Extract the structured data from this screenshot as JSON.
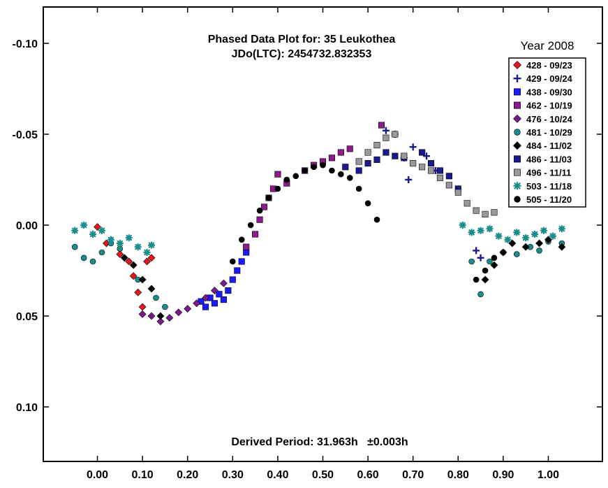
{
  "chart_data": {
    "type": "scatter",
    "title": "Phased Data Plot for: 35 Leukothea",
    "subtitle": "JDo(LTC): 2454732.832353",
    "legend_title": "Year 2008",
    "footer": "Derived Period: 31.963h   ±0.003h",
    "xlim": [
      -0.12,
      1.12
    ],
    "ylim": [
      -0.12,
      0.13
    ],
    "y_inverted": true,
    "x_ticks": [
      "0.00",
      "0.10",
      "0.20",
      "0.30",
      "0.40",
      "0.50",
      "0.60",
      "0.70",
      "0.80",
      "0.90",
      "1.00"
    ],
    "x_tick_values": [
      0,
      0.1,
      0.2,
      0.3,
      0.4,
      0.5,
      0.6,
      0.7,
      0.8,
      0.9,
      1.0
    ],
    "y_ticks": [
      "-0.10",
      "-0.05",
      "0.00",
      "0.05",
      "0.10"
    ],
    "y_tick_values": [
      -0.1,
      -0.05,
      0,
      0.05,
      0.1
    ],
    "legend_placement": "top-right",
    "series": [
      {
        "name": "428 - 09/23",
        "marker": "diamond",
        "color": "#e8141b",
        "x": [
          0.0,
          0.02,
          0.05,
          0.07,
          0.08,
          0.09,
          0.1,
          0.11,
          0.12
        ],
        "y": [
          0.001,
          0.01,
          0.016,
          0.02,
          0.028,
          0.037,
          0.045,
          0.02,
          0.018
        ]
      },
      {
        "name": "429 - 09/24",
        "marker": "plus",
        "color": "#1a1a8c",
        "x": [
          0.64,
          0.66,
          0.68,
          0.69,
          0.7,
          0.73,
          0.75,
          0.84,
          0.85
        ],
        "y": [
          -0.052,
          -0.05,
          -0.037,
          -0.025,
          -0.043,
          -0.038,
          -0.03,
          0.014,
          0.018
        ]
      },
      {
        "name": "438 - 09/30",
        "marker": "square",
        "color": "#1a1aff",
        "x": [
          0.23,
          0.24,
          0.25,
          0.26,
          0.27,
          0.28,
          0.29,
          0.3,
          0.31,
          0.32,
          0.33
        ],
        "y": [
          0.042,
          0.045,
          0.04,
          0.043,
          0.038,
          0.041,
          0.036,
          0.03,
          0.025,
          0.02,
          0.015
        ]
      },
      {
        "name": "462 - 10/19",
        "marker": "square",
        "color": "#8b1a8b",
        "x": [
          0.33,
          0.35,
          0.36,
          0.37,
          0.38,
          0.39,
          0.4,
          0.42,
          0.46,
          0.48,
          0.5,
          0.52,
          0.54,
          0.56,
          0.63
        ],
        "y": [
          0.012,
          0.005,
          -0.003,
          -0.01,
          -0.015,
          -0.02,
          -0.028,
          -0.023,
          -0.03,
          -0.033,
          -0.035,
          -0.037,
          -0.04,
          -0.042,
          -0.055
        ]
      },
      {
        "name": "476 - 10/24",
        "marker": "diamond",
        "color": "#7a1a8c",
        "x": [
          0.1,
          0.12,
          0.14,
          0.16,
          0.18,
          0.2,
          0.22,
          0.24,
          0.26,
          0.28
        ],
        "y": [
          0.049,
          0.05,
          0.053,
          0.051,
          0.048,
          0.046,
          0.043,
          0.04,
          0.036,
          0.032
        ]
      },
      {
        "name": "481 - 10/29",
        "marker": "circle",
        "color": "#1a8c8c",
        "x": [
          -0.05,
          -0.03,
          -0.01,
          0.01,
          0.03,
          0.05,
          0.09,
          0.13,
          0.15,
          0.83,
          0.85,
          0.87,
          0.9,
          0.93,
          0.96,
          0.98,
          1.0,
          1.03
        ],
        "y": [
          0.012,
          0.018,
          0.02,
          0.015,
          0.01,
          0.013,
          0.03,
          0.04,
          0.045,
          0.02,
          0.038,
          0.02,
          0.015,
          0.016,
          0.012,
          0.014,
          0.009,
          0.01
        ]
      },
      {
        "name": "484 - 11/02",
        "marker": "diamond",
        "color": "#000000",
        "x": [
          0.06,
          0.08,
          0.1,
          0.12,
          0.14,
          0.86,
          0.88,
          0.9,
          0.92,
          0.95,
          0.98,
          1.0,
          1.03
        ],
        "y": [
          0.018,
          0.022,
          0.03,
          0.035,
          0.05,
          0.03,
          0.022,
          0.015,
          0.01,
          0.012,
          0.01,
          0.008,
          0.012
        ]
      },
      {
        "name": "486 - 11/03",
        "marker": "square",
        "color": "#1a1a8c",
        "x": [
          0.55,
          0.58,
          0.6,
          0.62,
          0.64,
          0.66,
          0.68,
          0.72,
          0.74,
          0.76,
          0.78,
          0.8
        ],
        "y": [
          -0.032,
          -0.03,
          -0.034,
          -0.036,
          -0.04,
          -0.038,
          -0.037,
          -0.04,
          -0.034,
          -0.03,
          -0.027,
          -0.02
        ]
      },
      {
        "name": "496 - 11/11",
        "marker": "square",
        "color": "#999999",
        "x": [
          0.58,
          0.6,
          0.62,
          0.64,
          0.66,
          0.68,
          0.7,
          0.72,
          0.74,
          0.76,
          0.78,
          0.8,
          0.82,
          0.84,
          0.86,
          0.88
        ],
        "y": [
          -0.035,
          -0.04,
          -0.044,
          -0.048,
          -0.05,
          -0.038,
          -0.034,
          -0.032,
          -0.03,
          -0.026,
          -0.022,
          -0.018,
          -0.012,
          -0.008,
          -0.006,
          -0.007
        ]
      },
      {
        "name": "503 - 11/18",
        "marker": "star",
        "color": "#1a8c8c",
        "x": [
          -0.05,
          -0.03,
          -0.01,
          0.01,
          0.03,
          0.05,
          0.07,
          0.09,
          0.11,
          0.12,
          0.81,
          0.83,
          0.85,
          0.87,
          0.89,
          0.91,
          0.93,
          0.95,
          0.97,
          0.99,
          1.01,
          1.03
        ],
        "y": [
          0.003,
          0.0,
          0.005,
          0.003,
          0.008,
          0.01,
          0.007,
          0.012,
          0.015,
          0.011,
          0.0,
          0.004,
          0.003,
          0.002,
          0.006,
          0.008,
          0.004,
          0.007,
          0.005,
          0.003,
          0.006,
          0.002
        ]
      },
      {
        "name": "505 - 11/20",
        "marker": "circle",
        "color": "#000000",
        "x": [
          0.3,
          0.32,
          0.34,
          0.36,
          0.38,
          0.4,
          0.42,
          0.44,
          0.46,
          0.48,
          0.5,
          0.52,
          0.54,
          0.56,
          0.58,
          0.6,
          0.62,
          0.84,
          0.86,
          0.88
        ],
        "y": [
          0.02,
          0.008,
          0.0,
          -0.008,
          -0.015,
          -0.02,
          -0.025,
          -0.027,
          -0.03,
          -0.032,
          -0.033,
          -0.03,
          -0.028,
          -0.026,
          -0.02,
          -0.012,
          -0.003,
          0.03,
          0.025,
          0.018
        ]
      }
    ]
  }
}
